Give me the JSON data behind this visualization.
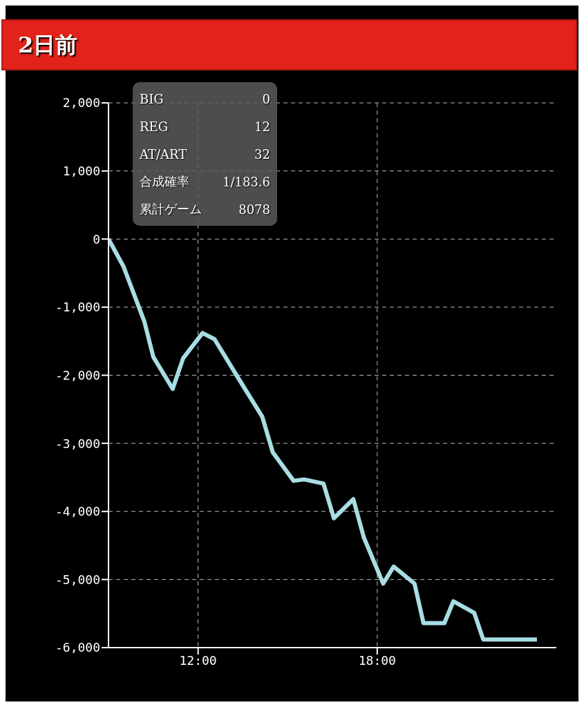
{
  "chart_data": {
    "type": "line",
    "title": "2日前",
    "x": [
      9.0,
      9.5,
      10.2,
      10.5,
      11.15,
      11.5,
      12.15,
      12.55,
      13.4,
      14.15,
      14.5,
      15.2,
      15.55,
      16.2,
      16.55,
      17.2,
      17.55,
      18.2,
      18.55,
      19.25,
      19.55,
      20.25,
      20.55,
      21.25,
      21.55,
      23.35
    ],
    "series": [
      {
        "color": "#a8dde4",
        "values": [
          0,
          -400,
          -1210,
          -1730,
          -2200,
          -1750,
          -1380,
          -1470,
          -2080,
          -2610,
          -3130,
          -3550,
          -3530,
          -3590,
          -4100,
          -3820,
          -4380,
          -5060,
          -4810,
          -5060,
          -5640,
          -5640,
          -5320,
          -5490,
          -5880,
          -5880
        ]
      }
    ],
    "xlim": [
      9,
      24
    ],
    "xticks": [
      {
        "value": 12,
        "label": "12:00"
      },
      {
        "value": 18,
        "label": "18:00"
      }
    ],
    "ylim": [
      -6000,
      2000
    ],
    "yticks": [
      {
        "value": -6000,
        "label": "-6,000"
      },
      {
        "value": -5000,
        "label": "-5,000"
      },
      {
        "value": -4000,
        "label": "-4,000"
      },
      {
        "value": -3000,
        "label": "-3,000"
      },
      {
        "value": -2000,
        "label": "-2,000"
      },
      {
        "value": -1000,
        "label": "-1,000"
      },
      {
        "value": 0,
        "label": "0"
      },
      {
        "value": 1000,
        "label": "1,000"
      },
      {
        "value": 2000,
        "label": "2,000"
      }
    ],
    "grid": true,
    "line_style": "solid",
    "marker": "none",
    "annotations": [
      "BIG",
      "0",
      "REG",
      "12",
      "AT/ART",
      "32",
      "合成確率",
      "1/183.6",
      "累計ゲーム",
      "8078"
    ]
  }
}
